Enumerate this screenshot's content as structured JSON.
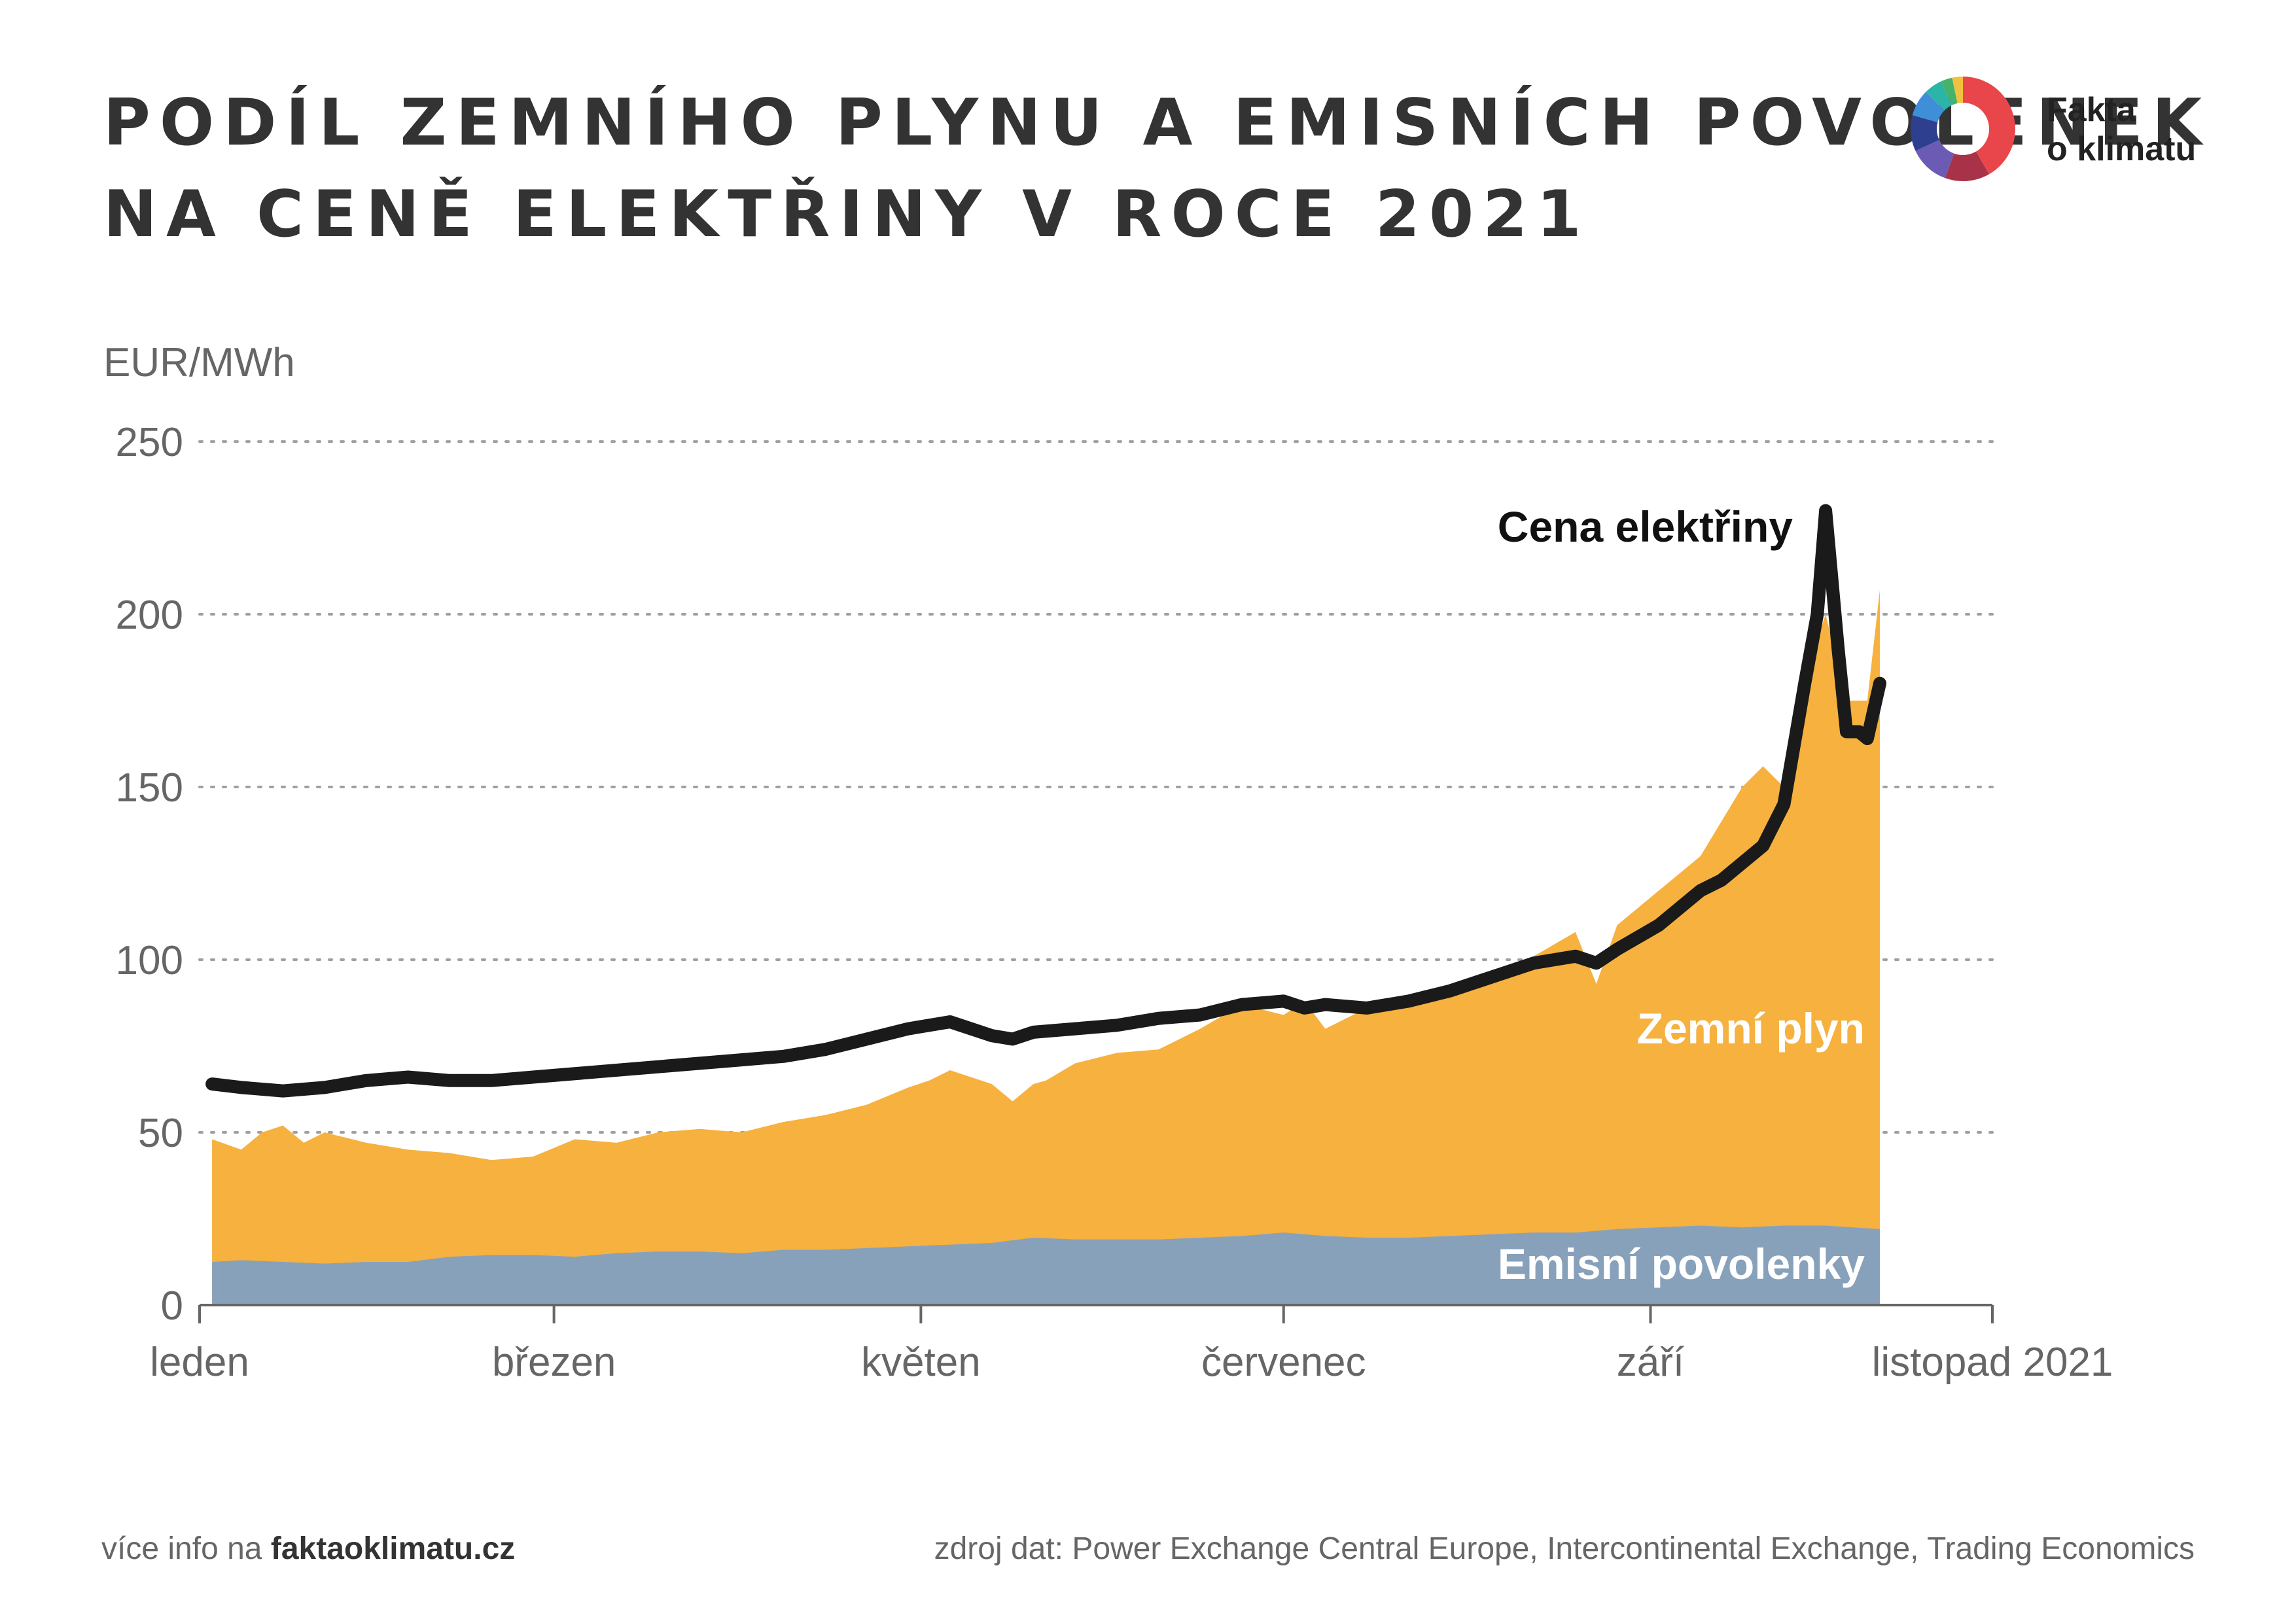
{
  "title": {
    "line1": "PODÍL ZEMNÍHO PLYNU A EMISNÍCH POVOLENEK",
    "line2": "NA CENĚ ELEKTŘINY V ROCE 2021"
  },
  "logo": {
    "line1": "Fakta",
    "line2": "o klimatu",
    "ring_colors": [
      "#e8464b",
      "#a83248",
      "#6b5bb5",
      "#2f3f8f",
      "#3f8ed8",
      "#2bb5a8",
      "#45b36b",
      "#f2c140"
    ]
  },
  "footer": {
    "more_info_prefix": "více info na",
    "more_info_link": "faktaoklimatu.cz",
    "source": "zdroj dat: Power Exchange Central Europe, Intercontinental Exchange, Trading Economics"
  },
  "colors": {
    "gas": "#f6b13f",
    "emissions": "#88a1bb",
    "price": "#1a1a1a"
  },
  "chart_data": {
    "type": "area",
    "ylabel": "EUR/MWh",
    "ylim": [
      0,
      250
    ],
    "yticks": [
      0,
      50,
      100,
      150,
      200,
      250
    ],
    "grid": true,
    "x_unit": "week index",
    "xlim": [
      0,
      43
    ],
    "xticks": [
      {
        "x": 0,
        "label": "leden"
      },
      {
        "x": 8.5,
        "label": "březen"
      },
      {
        "x": 17.3,
        "label": "květen"
      },
      {
        "x": 26,
        "label": "červenec"
      },
      {
        "x": 34.8,
        "label": "září"
      },
      {
        "x": 43,
        "label": "listopad 2021"
      }
    ],
    "series": [
      {
        "name": "Emisní povolenky",
        "kind": "stacked-area-bottom",
        "x": [
          0.3,
          1,
          2,
          3,
          4,
          5,
          6,
          7,
          8,
          9,
          10,
          11,
          12,
          13,
          14,
          15,
          16,
          17,
          18,
          19,
          20,
          21,
          22,
          23,
          24,
          25,
          26,
          27,
          28,
          29,
          30,
          31,
          32,
          33,
          34,
          35,
          36,
          37,
          38,
          39,
          40.3
        ],
        "values": [
          12.5,
          13,
          12.5,
          12,
          12.5,
          12.5,
          14,
          14.5,
          14.5,
          14,
          15,
          15.5,
          15.5,
          15,
          16,
          16,
          16.5,
          17,
          17.5,
          18,
          19.5,
          19,
          19,
          19,
          19.5,
          20,
          21,
          20,
          19.5,
          19.5,
          20,
          20.5,
          21,
          21,
          22,
          22.5,
          23,
          22.5,
          23,
          23,
          22
        ]
      },
      {
        "name": "Zemní plyn",
        "kind": "stacked-area-top",
        "x": [
          0.3,
          1,
          1.5,
          2,
          2.5,
          3,
          4,
          5,
          6,
          7,
          8,
          9,
          10,
          11,
          12,
          13,
          14,
          15,
          16,
          17,
          17.5,
          18,
          19,
          19.5,
          20,
          20.3,
          21,
          22,
          23,
          24,
          25,
          26,
          26.5,
          27,
          28,
          29,
          30,
          31,
          32,
          33,
          33.5,
          34,
          35,
          36,
          37,
          37.5,
          38,
          38.5,
          39,
          39.5,
          40,
          40.3
        ],
        "values": [
          48,
          45,
          50,
          52,
          47,
          50,
          47,
          45,
          44,
          42,
          43,
          48,
          47,
          50,
          51,
          50,
          53,
          55,
          58,
          63,
          65,
          68,
          64,
          59,
          64,
          65,
          70,
          73,
          74,
          80,
          87,
          84,
          88,
          80,
          86,
          88,
          92,
          96,
          101,
          108,
          93,
          110,
          120,
          130,
          150,
          156,
          150,
          182,
          200,
          175,
          175,
          207
        ]
      },
      {
        "name": "Cena elektřiny",
        "kind": "line",
        "x": [
          0.3,
          1,
          2,
          3,
          4,
          5,
          6,
          7,
          8,
          9,
          10,
          11,
          12,
          13,
          14,
          15,
          16,
          17,
          18,
          19,
          19.5,
          20,
          21,
          22,
          23,
          24,
          25,
          26,
          26.5,
          27,
          28,
          29,
          30,
          31,
          32,
          33,
          33.5,
          34,
          35,
          36,
          36.5,
          37,
          37.5,
          38,
          38.5,
          38.8,
          39,
          39.3,
          39.5,
          39.8,
          40,
          40.3
        ],
        "values": [
          64,
          63,
          62,
          63,
          65,
          66,
          65,
          65,
          66,
          67,
          68,
          69,
          70,
          71,
          72,
          74,
          77,
          80,
          82,
          78,
          77,
          79,
          80,
          81,
          83,
          84,
          87,
          88,
          86,
          87,
          86,
          88,
          91,
          95,
          99,
          101,
          99,
          103,
          110,
          120,
          123,
          128,
          133,
          145,
          180,
          200,
          230,
          190,
          166,
          166,
          164,
          180
        ]
      }
    ]
  }
}
